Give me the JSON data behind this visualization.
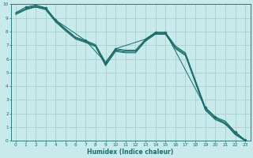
{
  "xlabel": "Humidex (Indice chaleur)",
  "ylabel": "",
  "bg_color": "#c8eaea",
  "grid_color": "#aacece",
  "line_color": "#1a6b6b",
  "xlim": [
    -0.5,
    23.5
  ],
  "ylim": [
    0,
    10
  ],
  "xticks": [
    0,
    1,
    2,
    3,
    4,
    5,
    6,
    7,
    8,
    9,
    10,
    11,
    12,
    13,
    14,
    15,
    16,
    17,
    18,
    19,
    20,
    21,
    22,
    23
  ],
  "yticks": [
    0,
    1,
    2,
    3,
    4,
    5,
    6,
    7,
    8,
    9,
    10
  ],
  "lines": [
    {
      "x": [
        0,
        1,
        2,
        3,
        4,
        5,
        6,
        7,
        8,
        9,
        10,
        11,
        12,
        13,
        14,
        15,
        16,
        17,
        18,
        19,
        20,
        21,
        22,
        23
      ],
      "y": [
        9.4,
        9.8,
        9.95,
        9.75,
        8.85,
        8.2,
        7.6,
        7.35,
        7.05,
        5.75,
        6.75,
        6.65,
        6.65,
        7.45,
        7.95,
        7.95,
        6.95,
        6.45,
        4.45,
        2.45,
        1.75,
        1.45,
        0.65,
        0.05
      ]
    },
    {
      "x": [
        0,
        1,
        2,
        3,
        4,
        5,
        6,
        7,
        8,
        9,
        10,
        11,
        12,
        13,
        14,
        15,
        16,
        17,
        18,
        19,
        20,
        21,
        22,
        23
      ],
      "y": [
        9.3,
        9.65,
        9.85,
        9.65,
        8.75,
        8.1,
        7.5,
        7.25,
        6.95,
        5.55,
        6.6,
        6.5,
        6.5,
        7.35,
        7.85,
        7.85,
        6.8,
        6.3,
        4.3,
        2.3,
        1.6,
        1.3,
        0.5,
        0.0
      ]
    },
    {
      "x": [
        0,
        1,
        2,
        3,
        4,
        5,
        6,
        7,
        8,
        9,
        10,
        11,
        12,
        13,
        14,
        15,
        16,
        17,
        18,
        19,
        20,
        21,
        22,
        23
      ],
      "y": [
        9.35,
        9.7,
        9.9,
        9.7,
        8.8,
        8.15,
        7.55,
        7.3,
        7.0,
        5.65,
        6.68,
        6.58,
        6.58,
        7.4,
        7.9,
        7.9,
        6.88,
        6.38,
        4.38,
        2.38,
        1.68,
        1.38,
        0.58,
        0.03
      ]
    },
    {
      "x": [
        0,
        1,
        2,
        3,
        4,
        5,
        6,
        7,
        8,
        9,
        10,
        11,
        12,
        13,
        14,
        15,
        16,
        17,
        18,
        19,
        20,
        21,
        22,
        23
      ],
      "y": [
        9.25,
        9.6,
        9.8,
        9.6,
        8.7,
        8.05,
        7.45,
        7.2,
        6.9,
        5.5,
        6.55,
        6.45,
        6.45,
        7.3,
        7.8,
        7.8,
        6.75,
        6.25,
        4.25,
        2.25,
        1.55,
        1.25,
        0.45,
        0.0
      ]
    }
  ],
  "marker_x": [
    1,
    3,
    4,
    7,
    9,
    10,
    13,
    14,
    15,
    19,
    20,
    22,
    23
  ],
  "marker_y": [
    9.8,
    9.75,
    8.85,
    7.35,
    5.75,
    6.75,
    7.45,
    7.95,
    7.95,
    2.45,
    1.75,
    0.65,
    0.05
  ]
}
